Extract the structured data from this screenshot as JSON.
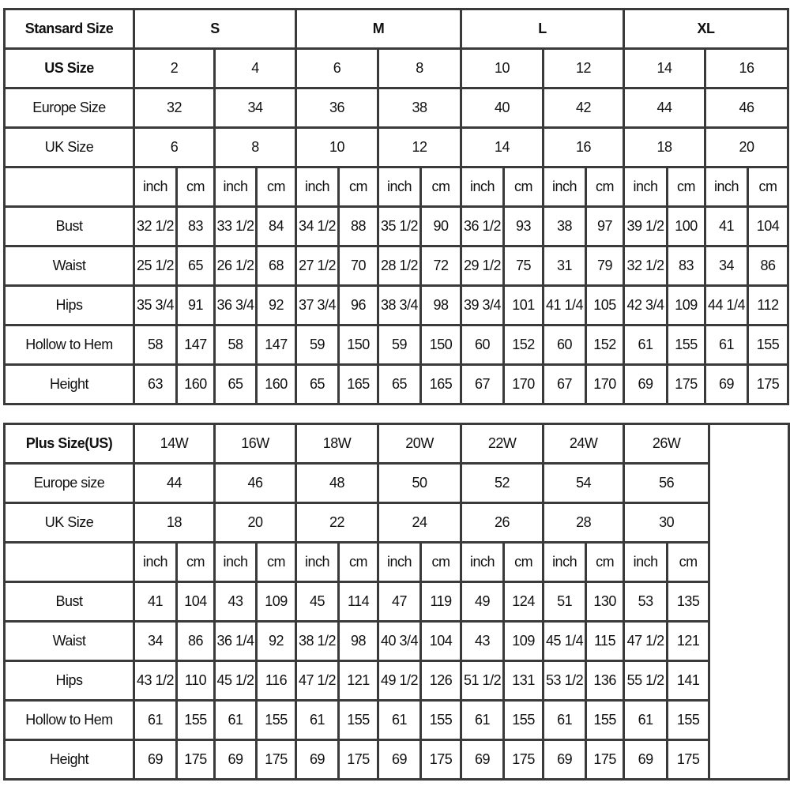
{
  "standard": {
    "header_label": "Stansard Size",
    "groups": [
      "S",
      "M",
      "L",
      "XL"
    ],
    "us_label": "US Size",
    "us": [
      "2",
      "4",
      "6",
      "8",
      "10",
      "12",
      "14",
      "16"
    ],
    "europe_label": "Europe Size",
    "europe": [
      "32",
      "34",
      "36",
      "38",
      "40",
      "42",
      "44",
      "46"
    ],
    "uk_label": "UK Size",
    "uk": [
      "6",
      "8",
      "10",
      "12",
      "14",
      "16",
      "18",
      "20"
    ],
    "unit_inch": "inch",
    "unit_cm": "cm",
    "rows": [
      {
        "label": "Bust",
        "values": [
          "32 1/2",
          "83",
          "33 1/2",
          "84",
          "34 1/2",
          "88",
          "35 1/2",
          "90",
          "36 1/2",
          "93",
          "38",
          "97",
          "39 1/2",
          "100",
          "41",
          "104"
        ]
      },
      {
        "label": "Waist",
        "values": [
          "25 1/2",
          "65",
          "26 1/2",
          "68",
          "27 1/2",
          "70",
          "28 1/2",
          "72",
          "29 1/2",
          "75",
          "31",
          "79",
          "32 1/2",
          "83",
          "34",
          "86"
        ]
      },
      {
        "label": "Hips",
        "values": [
          "35 3/4",
          "91",
          "36 3/4",
          "92",
          "37 3/4",
          "96",
          "38 3/4",
          "98",
          "39 3/4",
          "101",
          "41 1/4",
          "105",
          "42 3/4",
          "109",
          "44 1/4",
          "112"
        ]
      },
      {
        "label": "Hollow to Hem",
        "values": [
          "58",
          "147",
          "58",
          "147",
          "59",
          "150",
          "59",
          "150",
          "60",
          "152",
          "60",
          "152",
          "61",
          "155",
          "61",
          "155"
        ]
      },
      {
        "label": "Height",
        "values": [
          "63",
          "160",
          "65",
          "160",
          "65",
          "165",
          "65",
          "165",
          "67",
          "170",
          "67",
          "170",
          "69",
          "175",
          "69",
          "175"
        ]
      }
    ]
  },
  "plus": {
    "header_label": "Plus Size(US)",
    "sizes": [
      "14W",
      "16W",
      "18W",
      "20W",
      "22W",
      "24W",
      "26W"
    ],
    "europe_label": "Europe size",
    "europe": [
      "44",
      "46",
      "48",
      "50",
      "52",
      "54",
      "56"
    ],
    "uk_label": "UK Size",
    "uk": [
      "18",
      "20",
      "22",
      "24",
      "26",
      "28",
      "30"
    ],
    "unit_inch": "inch",
    "unit_cm": "cm",
    "rows": [
      {
        "label": "Bust",
        "values": [
          "41",
          "104",
          "43",
          "109",
          "45",
          "114",
          "47",
          "119",
          "49",
          "124",
          "51",
          "130",
          "53",
          "135"
        ]
      },
      {
        "label": "Waist",
        "values": [
          "34",
          "86",
          "36 1/4",
          "92",
          "38 1/2",
          "98",
          "40 3/4",
          "104",
          "43",
          "109",
          "45 1/4",
          "115",
          "47 1/2",
          "121"
        ]
      },
      {
        "label": "Hips",
        "values": [
          "43 1/2",
          "110",
          "45 1/2",
          "116",
          "47 1/2",
          "121",
          "49 1/2",
          "126",
          "51 1/2",
          "131",
          "53 1/2",
          "136",
          "55 1/2",
          "141"
        ]
      },
      {
        "label": "Hollow to Hem",
        "values": [
          "61",
          "155",
          "61",
          "155",
          "61",
          "155",
          "61",
          "155",
          "61",
          "155",
          "61",
          "155",
          "61",
          "155"
        ]
      },
      {
        "label": "Height",
        "values": [
          "69",
          "175",
          "69",
          "175",
          "69",
          "175",
          "69",
          "175",
          "69",
          "175",
          "69",
          "175",
          "69",
          "175"
        ]
      }
    ]
  }
}
